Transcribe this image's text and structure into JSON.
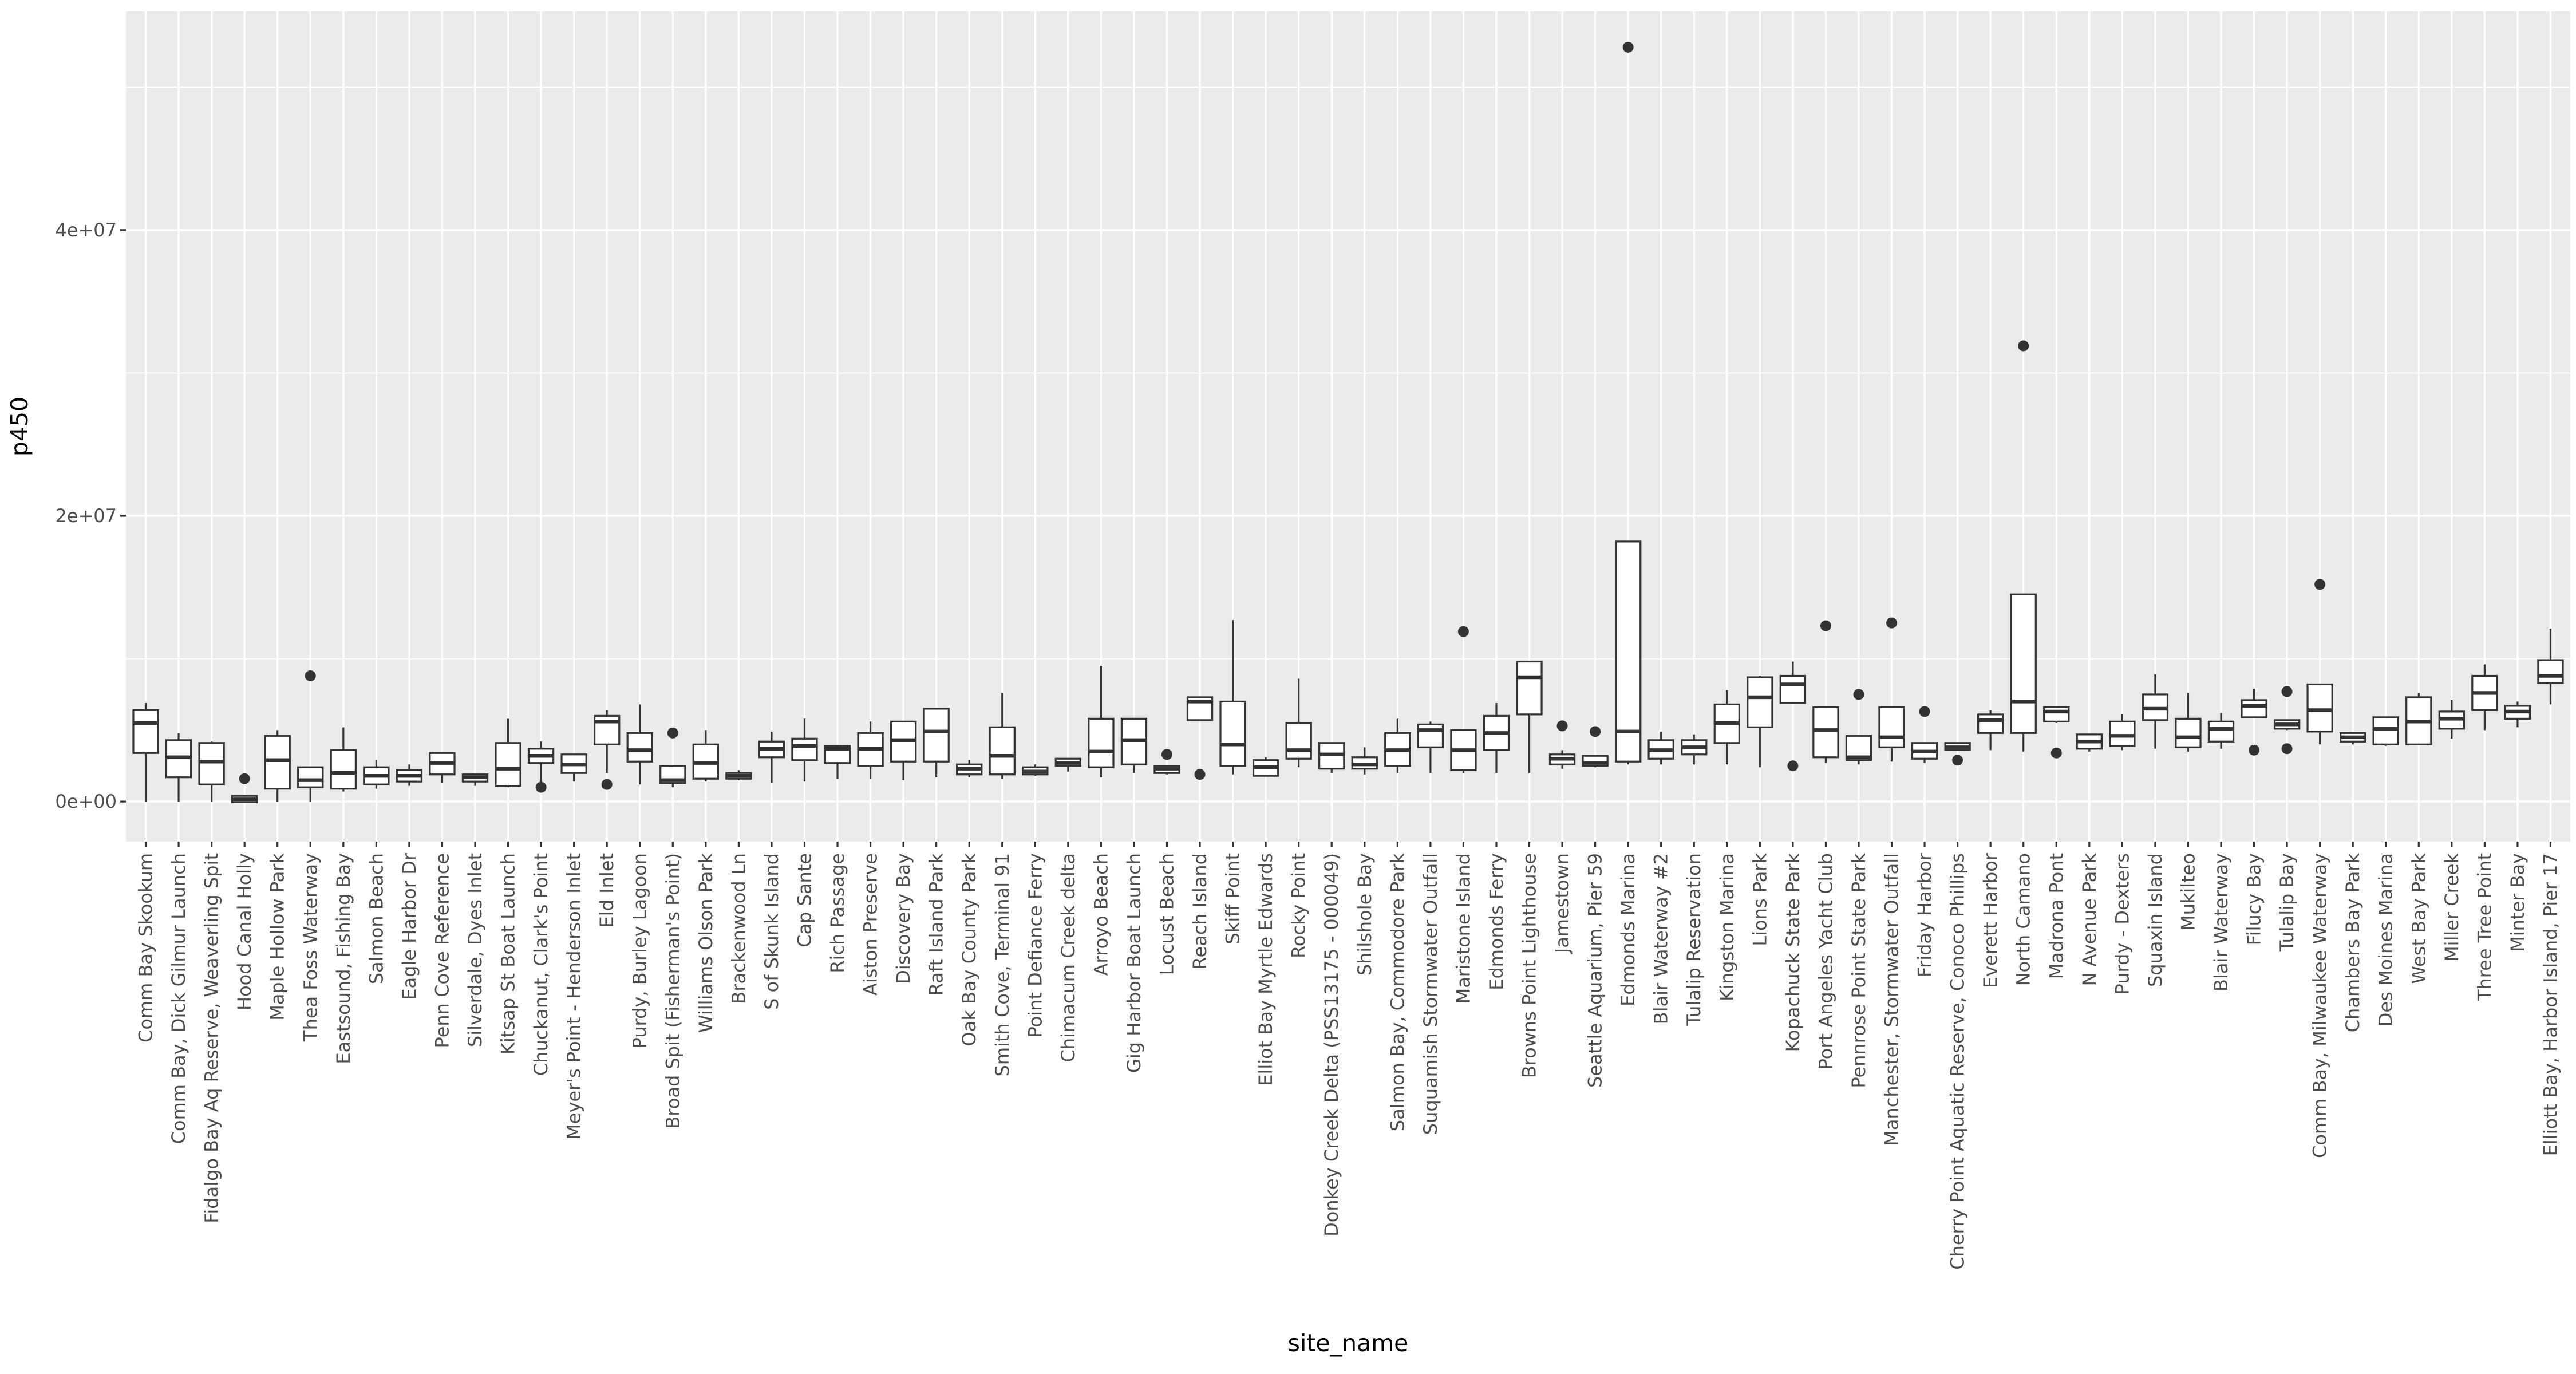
{
  "chart_data": {
    "type": "boxplot",
    "title": "",
    "xlabel": "site_name",
    "ylabel": "p450",
    "ylim": [
      -2800000,
      55300000
    ],
    "yticks": [
      0,
      20000000,
      40000000
    ],
    "ytick_labels": [
      "0e+00",
      "2e+07",
      "4e+07"
    ],
    "categories": [
      "Comm Bay Skookum",
      "Comm Bay, Dick Gilmur Launch",
      "Fidalgo Bay Aq Reserve, Weaverling Spit",
      "Hood Canal Holly",
      "Maple Hollow Park",
      "Thea Foss Waterway",
      "Eastsound, Fishing Bay",
      "Salmon Beach",
      "Eagle Harbor Dr",
      "Penn Cove Reference",
      "Silverdale, Dyes Inlet",
      "Kitsap St Boat Launch",
      "Chuckanut, Clark's Point",
      "Meyer's Point - Henderson Inlet",
      "Eld Inlet",
      "Purdy, Burley Lagoon",
      "Broad Spit (Fisherman's Point)",
      "Williams Olson Park",
      "Brackenwood Ln",
      "S of Skunk Island",
      "Cap Sante",
      "Rich Passage",
      "Aiston Preserve",
      "Discovery Bay",
      "Raft Island Park",
      "Oak Bay County Park",
      "Smith Cove, Terminal 91",
      "Point Defiance Ferry",
      "Chimacum Creek delta",
      "Arroyo Beach",
      "Gig Harbor Boat Launch",
      "Locust Beach",
      "Reach Island",
      "Skiff Point",
      "Elliot Bay Myrtle Edwards",
      "Rocky Point",
      "Donkey Creek Delta (PSS13175 - 000049)",
      "Shilshole Bay",
      "Salmon Bay, Commodore Park",
      "Suquamish Stormwater Outfall",
      "Maristone Island",
      "Edmonds Ferry",
      "Browns Point Lighthouse",
      "Jamestown",
      "Seattle Aquarium, Pier 59",
      "Edmonds Marina",
      "Blair Waterway #2",
      "Tulalip Reservation",
      "Kingston Marina",
      "Lions Park",
      "Kopachuck State Park",
      "Port Angeles Yacht Club",
      "Pennrose Point State Park",
      "Manchester, Stormwater Outfall",
      "Friday Harbor",
      "Cherry Point Aquatic Reserve, Conoco Phillips",
      "Everett Harbor",
      "North Camano",
      "Madrona Pont",
      "N Avenue Park",
      "Purdy - Dexters",
      "Squaxin Island",
      "Mukilteo",
      "Blair Waterway",
      "Filucy Bay",
      "Tulalip Bay",
      "Comm Bay, Milwaukee Waterway",
      "Chambers Bay Park",
      "Des Moines Marina",
      "West Bay Park",
      "Miller Creek",
      "Three Tree Point",
      "Minter Bay",
      "Elliott Bay, Harbor Island, Pier 17"
    ],
    "boxes": [
      {
        "min": 0,
        "q1": 3400000,
        "median": 5500000,
        "q3": 6400000,
        "max": 6900000,
        "outliers": []
      },
      {
        "min": 0,
        "q1": 1700000,
        "median": 3100000,
        "q3": 4300000,
        "max": 4800000,
        "outliers": []
      },
      {
        "min": 0,
        "q1": 1200000,
        "median": 2800000,
        "q3": 4100000,
        "max": 4200000,
        "outliers": []
      },
      {
        "min": -50000,
        "q1": -50000,
        "median": 150000,
        "q3": 400000,
        "max": 400000,
        "outliers": [
          1600000
        ]
      },
      {
        "min": 0,
        "q1": 900000,
        "median": 2900000,
        "q3": 4600000,
        "max": 5000000,
        "outliers": []
      },
      {
        "min": 0,
        "q1": 1000000,
        "median": 1500000,
        "q3": 2400000,
        "max": 2400000,
        "outliers": [
          8800000
        ]
      },
      {
        "min": 700000,
        "q1": 900000,
        "median": 2000000,
        "q3": 3600000,
        "max": 5200000,
        "outliers": []
      },
      {
        "min": 900000,
        "q1": 1200000,
        "median": 1800000,
        "q3": 2400000,
        "max": 2900000,
        "outliers": []
      },
      {
        "min": 1100000,
        "q1": 1400000,
        "median": 1800000,
        "q3": 2200000,
        "max": 2600000,
        "outliers": []
      },
      {
        "min": 1300000,
        "q1": 1900000,
        "median": 2700000,
        "q3": 3400000,
        "max": 3400000,
        "outliers": []
      },
      {
        "min": 1100000,
        "q1": 1400000,
        "median": 1700000,
        "q3": 1900000,
        "max": 1900000,
        "outliers": []
      },
      {
        "min": 1000000,
        "q1": 1100000,
        "median": 2300000,
        "q3": 4100000,
        "max": 5800000,
        "outliers": []
      },
      {
        "min": 1000000,
        "q1": 2700000,
        "median": 3200000,
        "q3": 3700000,
        "max": 4200000,
        "outliers": [
          1000000
        ]
      },
      {
        "min": 1400000,
        "q1": 2000000,
        "median": 2600000,
        "q3": 3300000,
        "max": 3300000,
        "outliers": []
      },
      {
        "min": 2000000,
        "q1": 4000000,
        "median": 5600000,
        "q3": 6000000,
        "max": 6400000,
        "outliers": [
          1200000
        ]
      },
      {
        "min": 1200000,
        "q1": 2800000,
        "median": 3600000,
        "q3": 4800000,
        "max": 6800000,
        "outliers": []
      },
      {
        "min": 1000000,
        "q1": 1300000,
        "median": 1500000,
        "q3": 2500000,
        "max": 2500000,
        "outliers": [
          4800000
        ]
      },
      {
        "min": 1400000,
        "q1": 1600000,
        "median": 2700000,
        "q3": 4000000,
        "max": 5000000,
        "outliers": []
      },
      {
        "min": 1500000,
        "q1": 1600000,
        "median": 1800000,
        "q3": 2000000,
        "max": 2200000,
        "outliers": []
      },
      {
        "min": 1300000,
        "q1": 3100000,
        "median": 3700000,
        "q3": 4200000,
        "max": 4900000,
        "outliers": []
      },
      {
        "min": 1400000,
        "q1": 2900000,
        "median": 3900000,
        "q3": 4400000,
        "max": 5800000,
        "outliers": []
      },
      {
        "min": 1600000,
        "q1": 2700000,
        "median": 3700000,
        "q3": 3900000,
        "max": 3900000,
        "outliers": []
      },
      {
        "min": 1600000,
        "q1": 2500000,
        "median": 3700000,
        "q3": 4800000,
        "max": 5600000,
        "outliers": []
      },
      {
        "min": 1500000,
        "q1": 2800000,
        "median": 4300000,
        "q3": 5600000,
        "max": 5600000,
        "outliers": []
      },
      {
        "min": 1700000,
        "q1": 2800000,
        "median": 4900000,
        "q3": 6500000,
        "max": 6500000,
        "outliers": []
      },
      {
        "min": 1700000,
        "q1": 1900000,
        "median": 2300000,
        "q3": 2600000,
        "max": 2900000,
        "outliers": []
      },
      {
        "min": 1600000,
        "q1": 1900000,
        "median": 3200000,
        "q3": 5200000,
        "max": 7600000,
        "outliers": []
      },
      {
        "min": 1800000,
        "q1": 1900000,
        "median": 2100000,
        "q3": 2400000,
        "max": 2600000,
        "outliers": []
      },
      {
        "min": 2100000,
        "q1": 2500000,
        "median": 2700000,
        "q3": 3000000,
        "max": 3000000,
        "outliers": []
      },
      {
        "min": 1700000,
        "q1": 2400000,
        "median": 3500000,
        "q3": 5800000,
        "max": 9500000,
        "outliers": []
      },
      {
        "min": 2000000,
        "q1": 2600000,
        "median": 4300000,
        "q3": 5800000,
        "max": 5800000,
        "outliers": []
      },
      {
        "min": 1900000,
        "q1": 2000000,
        "median": 2300000,
        "q3": 2500000,
        "max": 2500000,
        "outliers": [
          3300000
        ]
      },
      {
        "min": 5700000,
        "q1": 5700000,
        "median": 7000000,
        "q3": 7300000,
        "max": 7300000,
        "outliers": [
          1900000
        ]
      },
      {
        "min": 1900000,
        "q1": 2500000,
        "median": 4000000,
        "q3": 7000000,
        "max": 12700000,
        "outliers": []
      },
      {
        "min": 1800000,
        "q1": 1800000,
        "median": 2400000,
        "q3": 2900000,
        "max": 3100000,
        "outliers": []
      },
      {
        "min": 2400000,
        "q1": 3000000,
        "median": 3600000,
        "q3": 5500000,
        "max": 8600000,
        "outliers": []
      },
      {
        "min": 2000000,
        "q1": 2300000,
        "median": 3300000,
        "q3": 4100000,
        "max": 4100000,
        "outliers": []
      },
      {
        "min": 1900000,
        "q1": 2300000,
        "median": 2600000,
        "q3": 3100000,
        "max": 3800000,
        "outliers": []
      },
      {
        "min": 2000000,
        "q1": 2500000,
        "median": 3600000,
        "q3": 4800000,
        "max": 5800000,
        "outliers": []
      },
      {
        "min": 2000000,
        "q1": 3800000,
        "median": 5000000,
        "q3": 5400000,
        "max": 5600000,
        "outliers": []
      },
      {
        "min": 2000000,
        "q1": 2200000,
        "median": 3600000,
        "q3": 5000000,
        "max": 5000000,
        "outliers": [
          11900000
        ]
      },
      {
        "min": 2000000,
        "q1": 3600000,
        "median": 4800000,
        "q3": 6000000,
        "max": 6900000,
        "outliers": []
      },
      {
        "min": 2000000,
        "q1": 6100000,
        "median": 8700000,
        "q3": 9800000,
        "max": 9800000,
        "outliers": []
      },
      {
        "min": 2300000,
        "q1": 2600000,
        "median": 3000000,
        "q3": 3300000,
        "max": 3600000,
        "outliers": [
          5300000
        ]
      },
      {
        "min": 2400000,
        "q1": 2500000,
        "median": 2700000,
        "q3": 3200000,
        "max": 3200000,
        "outliers": [
          4900000
        ]
      },
      {
        "min": 2600000,
        "q1": 2800000,
        "median": 4900000,
        "q3": 18200000,
        "max": 18200000,
        "outliers": [
          52800000
        ]
      },
      {
        "min": 2600000,
        "q1": 3000000,
        "median": 3600000,
        "q3": 4300000,
        "max": 4900000,
        "outliers": []
      },
      {
        "min": 2600000,
        "q1": 3300000,
        "median": 3800000,
        "q3": 4300000,
        "max": 4700000,
        "outliers": []
      },
      {
        "min": 2600000,
        "q1": 4100000,
        "median": 5500000,
        "q3": 6800000,
        "max": 7800000,
        "outliers": []
      },
      {
        "min": 2400000,
        "q1": 5200000,
        "median": 7300000,
        "q3": 8700000,
        "max": 8800000,
        "outliers": []
      },
      {
        "min": 6900000,
        "q1": 6900000,
        "median": 8200000,
        "q3": 8800000,
        "max": 9800000,
        "outliers": [
          2500000
        ]
      },
      {
        "min": 2700000,
        "q1": 3100000,
        "median": 5000000,
        "q3": 6600000,
        "max": 6600000,
        "outliers": [
          12300000
        ]
      },
      {
        "min": 2600000,
        "q1": 2900000,
        "median": 3100000,
        "q3": 4600000,
        "max": 4600000,
        "outliers": [
          7500000
        ]
      },
      {
        "min": 2800000,
        "q1": 3800000,
        "median": 4500000,
        "q3": 6600000,
        "max": 6600000,
        "outliers": [
          12500000
        ]
      },
      {
        "min": 2700000,
        "q1": 3000000,
        "median": 3500000,
        "q3": 4100000,
        "max": 4100000,
        "outliers": [
          6300000
        ]
      },
      {
        "min": 3600000,
        "q1": 3600000,
        "median": 3800000,
        "q3": 4100000,
        "max": 4100000,
        "outliers": [
          2900000
        ]
      },
      {
        "min": 3600000,
        "q1": 4800000,
        "median": 5700000,
        "q3": 6100000,
        "max": 6400000,
        "outliers": []
      },
      {
        "min": 3500000,
        "q1": 4800000,
        "median": 7000000,
        "q3": 14500000,
        "max": 14500000,
        "outliers": [
          31900000
        ]
      },
      {
        "min": 5500000,
        "q1": 5600000,
        "median": 6300000,
        "q3": 6600000,
        "max": 6600000,
        "outliers": [
          3400000
        ]
      },
      {
        "min": 3500000,
        "q1": 3700000,
        "median": 4200000,
        "q3": 4700000,
        "max": 4700000,
        "outliers": []
      },
      {
        "min": 3600000,
        "q1": 3900000,
        "median": 4600000,
        "q3": 5600000,
        "max": 6100000,
        "outliers": []
      },
      {
        "min": 3700000,
        "q1": 5700000,
        "median": 6500000,
        "q3": 7500000,
        "max": 8900000,
        "outliers": []
      },
      {
        "min": 3500000,
        "q1": 3800000,
        "median": 4500000,
        "q3": 5800000,
        "max": 7600000,
        "outliers": []
      },
      {
        "min": 3700000,
        "q1": 4200000,
        "median": 5100000,
        "q3": 5600000,
        "max": 6200000,
        "outliers": []
      },
      {
        "min": 5900000,
        "q1": 5900000,
        "median": 6700000,
        "q3": 7100000,
        "max": 7900000,
        "outliers": [
          3600000
        ]
      },
      {
        "min": 5000000,
        "q1": 5100000,
        "median": 5400000,
        "q3": 5700000,
        "max": 5700000,
        "outliers": [
          7700000,
          3700000
        ]
      },
      {
        "min": 4000000,
        "q1": 4900000,
        "median": 6400000,
        "q3": 8200000,
        "max": 8200000,
        "outliers": [
          15200000
        ]
      },
      {
        "min": 4000000,
        "q1": 4200000,
        "median": 4500000,
        "q3": 4800000,
        "max": 4800000,
        "outliers": []
      },
      {
        "min": 3900000,
        "q1": 4000000,
        "median": 5100000,
        "q3": 5900000,
        "max": 5900000,
        "outliers": []
      },
      {
        "min": 4000000,
        "q1": 4000000,
        "median": 5600000,
        "q3": 7300000,
        "max": 7600000,
        "outliers": []
      },
      {
        "min": 4400000,
        "q1": 5100000,
        "median": 5800000,
        "q3": 6300000,
        "max": 7100000,
        "outliers": []
      },
      {
        "min": 5000000,
        "q1": 6400000,
        "median": 7600000,
        "q3": 8800000,
        "max": 9600000,
        "outliers": []
      },
      {
        "min": 5200000,
        "q1": 5800000,
        "median": 6300000,
        "q3": 6700000,
        "max": 7000000,
        "outliers": []
      },
      {
        "min": 6800000,
        "q1": 8300000,
        "median": 8800000,
        "q3": 9900000,
        "max": 12100000,
        "outliers": []
      }
    ]
  }
}
